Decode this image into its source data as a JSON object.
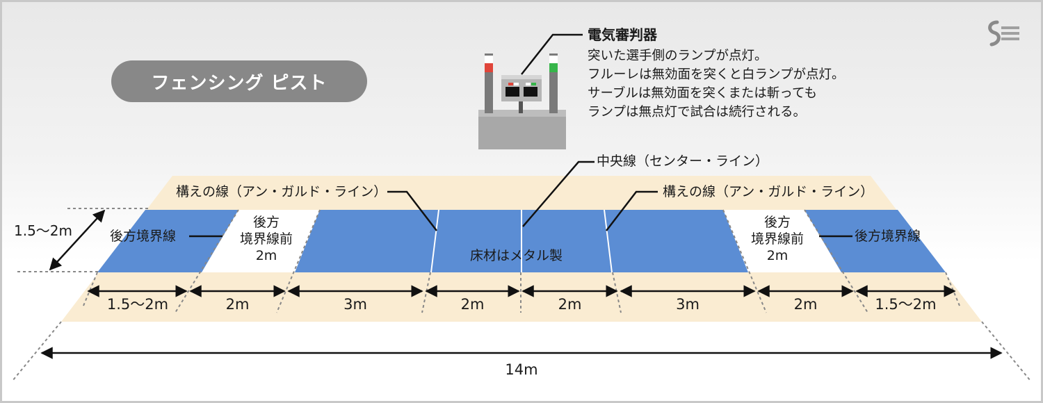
{
  "title": "フェンシング ピスト",
  "referee": {
    "title": "電気審判器",
    "lines": [
      "突いた選手側のランプが点灯。",
      "フルーレは無効面を突くと白ランプが点灯。",
      "サーブルは無効面を突くまたは斬っても",
      "ランプは無点灯で試合は続行される。"
    ]
  },
  "labels": {
    "center_line": "中央線（センター・ライン）",
    "en_garde_left": "構えの線（アン・ガルド・ライン）",
    "en_garde_right": "構えの線（アン・ガルド・ライン）",
    "rear_boundary_left": "後方境界線",
    "rear_boundary_right": "後方境界線",
    "front_zone_left": [
      "後方",
      "境界線前",
      "2m"
    ],
    "front_zone_right": [
      "後方",
      "境界線前",
      "2m"
    ],
    "floor": "床材はメタル製",
    "width": "1.5〜2m"
  },
  "segments": [
    "1.5〜2m",
    "2m",
    "3m",
    "2m",
    "2m",
    "3m",
    "2m",
    "1.5〜2m"
  ],
  "total_length": "14m",
  "colors": {
    "piste_blue": "#5b8dd4",
    "runoff_beige": "#faecd2",
    "title_pill": "#888888",
    "lamp_red": "#e0453a",
    "lamp_green": "#37b54a"
  }
}
